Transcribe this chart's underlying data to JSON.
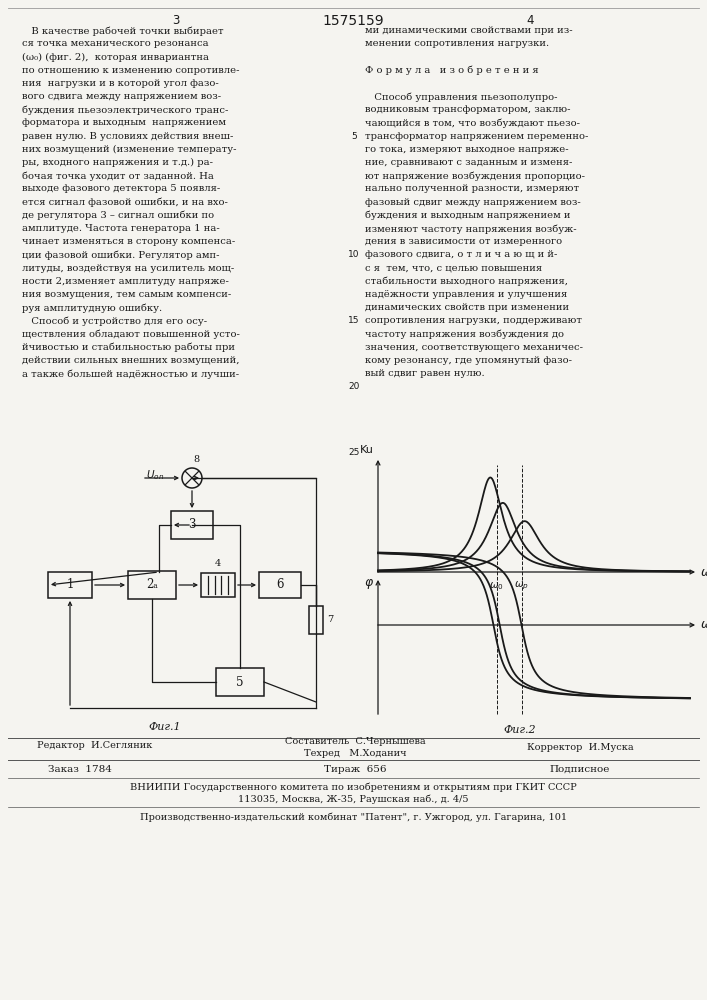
{
  "page_number_left": "3",
  "page_number_center": "1575159",
  "page_number_right": "4",
  "background_color": "#f5f4f0",
  "text_color": "#1a1a1a",
  "left_col_lines": [
    "   В качестве рабочей точки выбирает",
    "ся точка механического резонанса",
    "(ω₀) (фиг. 2),  которая инвариантна",
    "по отношению к изменению сопротивле-",
    "ния  нагрузки и в которой угол фазо-",
    "вого сдвига между напряжением воз-",
    "буждения пьезоэлектрического транс-",
    "форматора и выходным  напряжением",
    "равен нулю. В условиях действия внеш-",
    "них возмущений (изменение температу-",
    "ры, входного напряжения и т.д.) ра-",
    "бочая точка уходит от заданной. На",
    "выходе фазового детектора 5 появля-",
    "ется сигнал фазовой ошибки, и на вхо-",
    "де регулятора 3 – сигнал ошибки по",
    "амплитуде. Частота генератора 1 на-",
    "чинает изменяться в сторону компенса-",
    "ции фазовой ошибки. Регулятор амп-",
    "литуды, воздействуя на усилитель мощ-",
    "ности 2,изменяет амплитуду напряже-",
    "ния возмущения, тем самым компенси-",
    "руя амплитудную ошибку.",
    "   Способ и устройство для его осу-",
    "ществления обладают повышенной усто-",
    "йчивостью и стабильностью работы при",
    "действии сильных внешних возмущений,",
    "а также большей надёжностью и лучши-"
  ],
  "right_col_lines": [
    "ми динамическими свойствами при из-",
    "менении сопротивления нагрузки.",
    "",
    "Ф о р м у л а   и з о б р е т е н и я",
    "",
    "   Способ управления пьезополупро-",
    "водниковым трансформатором, заклю-",
    "чающийся в том, что возбуждают пьезо-",
    "трансформатор напряжением переменно-",
    "го тока, измеряют выходное напряже-",
    "ние, сравнивают с заданным и изменя-",
    "ют напряжение возбуждения пропорцио-",
    "нально полученной разности, измеряют",
    "фазовый сдвиг между напряжением воз-",
    "буждения и выходным напряжением и",
    "изменяют частоту напряжения возбуж-",
    "дения в зависимости от измеренного",
    "фазового сдвига, о т л и ч а ю щ и й-",
    "с я  тем, что, с целью повышения",
    "стабильности выходного напряжения,",
    "надёжности управления и улучшения",
    "динамических свойств при изменении",
    "сопротивления нагрузки, поддерживают",
    "частоту напряжения возбуждения до",
    "значения, соответствующего механичес-",
    "кому резонансу, где упомянутый фазо-",
    "вый сдвиг равен нулю."
  ],
  "footer_editor": "Редактор  И.Сегляник",
  "footer_composer": "Составитель  С.Чернышева",
  "footer_techred": "Техред   М.Ходанич",
  "footer_corrector": "Корректор  И.Муска",
  "footer_zakaz": "Заказ  1784",
  "footer_tirazh": "Тираж  656",
  "footer_podpisnoe": "Подписное",
  "footer_vniiipi": "ВНИИПИ Государственного комитета по изобретениям и открытиям при ГКИТ СССР",
  "footer_address": "113035, Москва, Ж-35, Раушская наб., д. 4/5",
  "footer_factory": "Производственно-издательский комбинат \"Патент\", г. Ужгород, ул. Гагарина, 101"
}
